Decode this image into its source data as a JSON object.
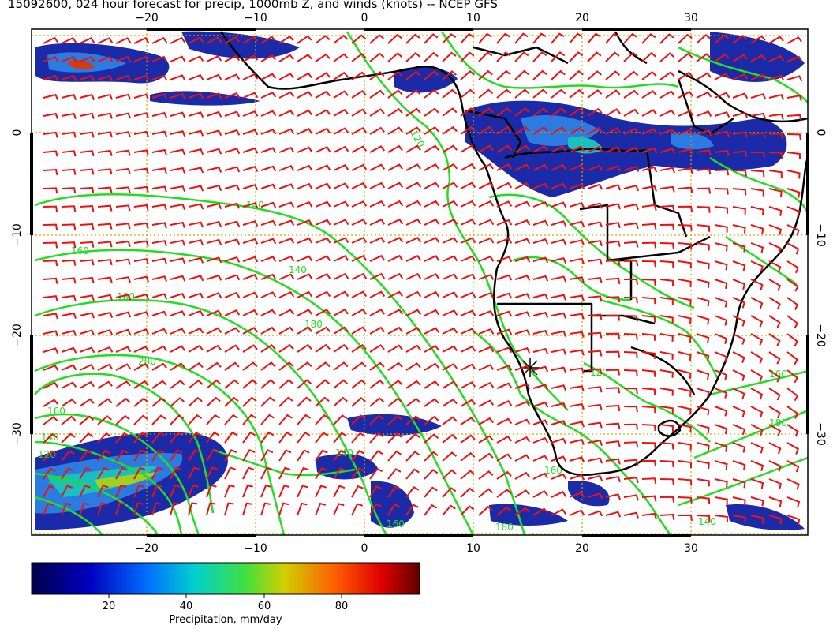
{
  "title": "15092600, 024 hour forecast for precip, 1000mb Z, and winds (knots) -- NCEP GFS",
  "axes": {
    "lon_ticks": [
      "−20",
      "−10",
      "0",
      "10",
      "20",
      "30"
    ],
    "lat_ticks": [
      "0",
      "−10",
      "−20",
      "−30"
    ]
  },
  "contour_labels": [
    "120",
    "140",
    "160",
    "180",
    "200",
    "140",
    "160",
    "180",
    "160",
    "140",
    "120",
    "140",
    "160",
    "180",
    "120",
    "160",
    "180",
    "140",
    "160"
  ],
  "colorbar": {
    "ticks": [
      "20",
      "40",
      "60",
      "80"
    ],
    "label": "Precipitation, mm/day",
    "range": [
      0,
      100
    ]
  },
  "colors": {
    "precip_low": "#00008b",
    "precip_mid": "#00bcd4",
    "precip_high": "#8b0000",
    "contour": "#22dd22",
    "wind_barb": "#ee1111",
    "coastline": "#000000",
    "grid": "#d4aa00"
  },
  "icons": [
    "wind-barb-icon",
    "station-star-icon"
  ]
}
